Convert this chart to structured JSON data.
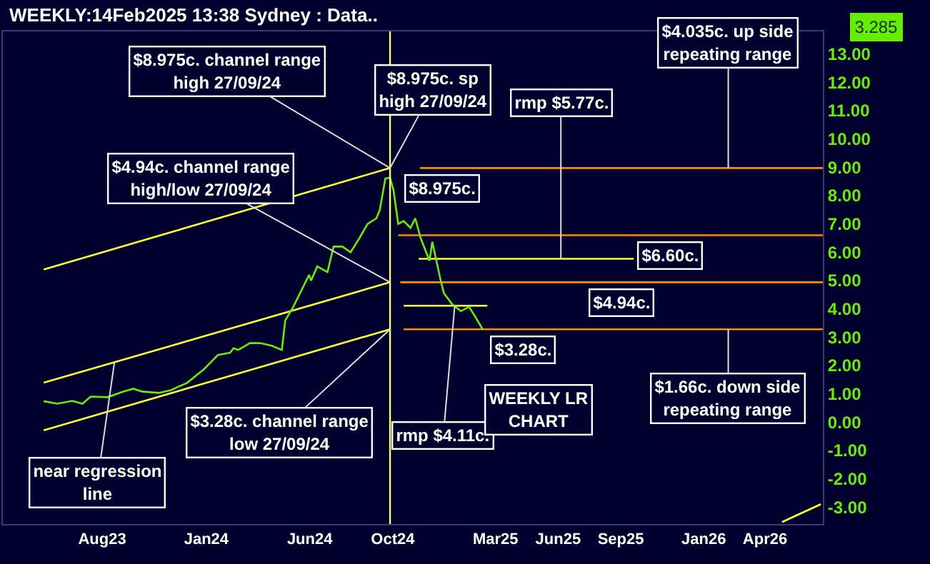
{
  "chart_data": {
    "type": "line",
    "title": "WEEKLY:14Feb2025 13:38 Sydney : Data..",
    "xlim": [
      "2023-03-08",
      "2026-06-25"
    ],
    "xticks": [
      {
        "value": "2023-08-01",
        "label": "Aug23"
      },
      {
        "value": "2024-01-01",
        "label": "Jan24"
      },
      {
        "value": "2024-06-01",
        "label": "Jun24"
      },
      {
        "value": "2024-10-01",
        "label": "Oct24"
      },
      {
        "value": "2025-03-01",
        "label": "Mar25"
      },
      {
        "value": "2025-06-01",
        "label": "Jun25"
      },
      {
        "value": "2025-09-01",
        "label": "Sep25"
      },
      {
        "value": "2026-01-01",
        "label": "Jan26"
      },
      {
        "value": "2026-04-01",
        "label": "Apr26"
      }
    ],
    "ylim": [
      -3.6,
      13.8
    ],
    "yticks": [
      {
        "value": -3,
        "label": "-3.00"
      },
      {
        "value": -2,
        "label": "-2.00"
      },
      {
        "value": -1,
        "label": "-1.00"
      },
      {
        "value": 0,
        "label": "0.00"
      },
      {
        "value": 1,
        "label": "1.00"
      },
      {
        "value": 2,
        "label": "2.00"
      },
      {
        "value": 3,
        "label": "3.00"
      },
      {
        "value": 4,
        "label": "4.00"
      },
      {
        "value": 5,
        "label": "5.00"
      },
      {
        "value": 6,
        "label": "6.00"
      },
      {
        "value": 7,
        "label": "7.00"
      },
      {
        "value": 8,
        "label": "8.00"
      },
      {
        "value": 9,
        "label": "9.00"
      },
      {
        "value": 10,
        "label": "10.00"
      },
      {
        "value": 11,
        "label": "11.00"
      },
      {
        "value": 12,
        "label": "12.00"
      },
      {
        "value": 13,
        "label": "13.00"
      }
    ],
    "series": [
      {
        "color": "#ffff33",
        "x": [
          "2023-05-07",
          "2024-09-27"
        ],
        "values": [
          5.39,
          8.975
        ]
      },
      {
        "color": "#ffff33",
        "x": [
          "2023-05-07",
          "2024-09-27"
        ],
        "values": [
          1.39,
          4.94
        ]
      },
      {
        "color": "#ffff33",
        "x": [
          "2023-05-07",
          "2024-09-27"
        ],
        "values": [
          -0.29,
          3.28
        ]
      },
      {
        "color": "#ffff33",
        "x": [
          "2026-04-26",
          "2026-06-22"
        ],
        "values": [
          -3.53,
          -2.9
        ]
      },
      {
        "color": "#ff8c00",
        "x": [
          "2024-11-10",
          "2026-06-25"
        ],
        "values": [
          8.975,
          8.975
        ]
      },
      {
        "color": "#ff8c00",
        "x": [
          "2024-10-09",
          "2026-06-25"
        ],
        "values": [
          6.6,
          6.6
        ]
      },
      {
        "color": "#ffff33",
        "x": [
          "2024-11-08",
          "2025-09-20"
        ],
        "values": [
          5.77,
          5.77
        ]
      },
      {
        "color": "#ff8c00",
        "x": [
          "2024-10-12",
          "2026-06-25"
        ],
        "values": [
          4.94,
          4.94
        ]
      },
      {
        "color": "#ffff33",
        "x": [
          "2024-10-17",
          "2025-02-17"
        ],
        "values": [
          4.11,
          4.11
        ]
      },
      {
        "color": "#ff8c00",
        "x": [
          "2024-10-17",
          "2026-06-25"
        ],
        "values": [
          3.28,
          3.28
        ]
      },
      {
        "color": "#66ee00",
        "x": [
          "2023-05-07",
          "2023-05-27",
          "2023-06-18",
          "2023-07-03",
          "2023-07-15",
          "2023-08-09",
          "2023-09-01",
          "2023-09-16",
          "2023-09-28",
          "2023-10-23",
          "2023-11-10",
          "2023-12-04",
          "2023-12-29",
          "2024-01-18",
          "2024-02-05",
          "2024-02-10",
          "2024-02-17",
          "2024-03-05",
          "2024-03-20",
          "2024-04-06",
          "2024-04-21",
          "2024-04-26",
          "2024-05-08",
          "2024-05-31",
          "2024-06-03",
          "2024-06-12",
          "2024-06-27",
          "2024-07-06",
          "2024-07-19",
          "2024-07-31",
          "2024-08-13",
          "2024-08-25",
          "2024-09-07",
          "2024-09-12",
          "2024-09-20",
          "2024-09-27",
          "2024-10-02",
          "2024-10-09",
          "2024-10-17",
          "2024-10-27",
          "2024-11-03",
          "2024-11-11",
          "2024-11-24",
          "2024-11-28",
          "2024-12-10",
          "2024-12-15",
          "2024-12-27",
          "2025-01-09",
          "2025-01-21",
          "2025-01-29",
          "2025-02-10"
        ],
        "values": [
          0.74,
          0.65,
          0.75,
          0.65,
          0.9,
          0.88,
          1.08,
          1.18,
          1.08,
          1.03,
          1.13,
          1.39,
          1.88,
          2.37,
          2.45,
          2.61,
          2.55,
          2.79,
          2.79,
          2.7,
          2.55,
          3.59,
          4.08,
          5.2,
          5.0,
          5.5,
          5.3,
          6.2,
          6.2,
          6.0,
          6.5,
          7.0,
          7.2,
          7.5,
          8.6,
          8.63,
          8.2,
          7.0,
          7.1,
          6.86,
          7.2,
          6.5,
          5.7,
          6.37,
          5.05,
          4.56,
          4.17,
          3.92,
          4.07,
          3.77,
          3.28
        ]
      }
    ],
    "ref_lines": [
      {
        "axis": "x",
        "value": "2024-09-27",
        "color": "#ffff66"
      }
    ],
    "annotations": [
      {
        "text": "$8.975c. channel range\nhigh 27/09/24",
        "x": "2024-09-27",
        "y": 8.975
      },
      {
        "text": "$8.975c. sp\nhigh 27/09/24",
        "x": "2024-09-27",
        "y": 8.975
      },
      {
        "text": "$4.94c. channel range\nhigh/low 27/09/24",
        "x": "2024-09-27",
        "y": 4.94
      },
      {
        "text": "$3.28c. channel range\nlow 27/09/24",
        "x": "2024-09-27",
        "y": 3.28
      },
      {
        "text": "near regression\nline",
        "x": "2023-08-19",
        "y": 2.12
      },
      {
        "text": "$8.975c.",
        "x": "2024-12-13",
        "y": 8.975
      },
      {
        "text": "rmp $5.77c.",
        "x": "2025-06-05",
        "y": 5.77
      },
      {
        "text": "$6.60c.",
        "x": "2025-09-20",
        "y": 6.6
      },
      {
        "text": "$4.94c.",
        "x": "2025-09-01",
        "y": 4.94
      },
      {
        "text": "$3.28c.",
        "x": "2025-04-10",
        "y": 3.28
      },
      {
        "text": "rmp $4.11c.",
        "x": "2024-12-31",
        "y": 4.11
      },
      "WEEKLY LR\nCHART",
      {
        "text": "$4.035c. up side\nrepeating range",
        "x": "2026-02-06",
        "y": 8.975
      },
      {
        "text": "$1.66c. down side\nrepeating range",
        "x": "2026-02-06",
        "y": 3.28
      },
      "3.285"
    ]
  }
}
